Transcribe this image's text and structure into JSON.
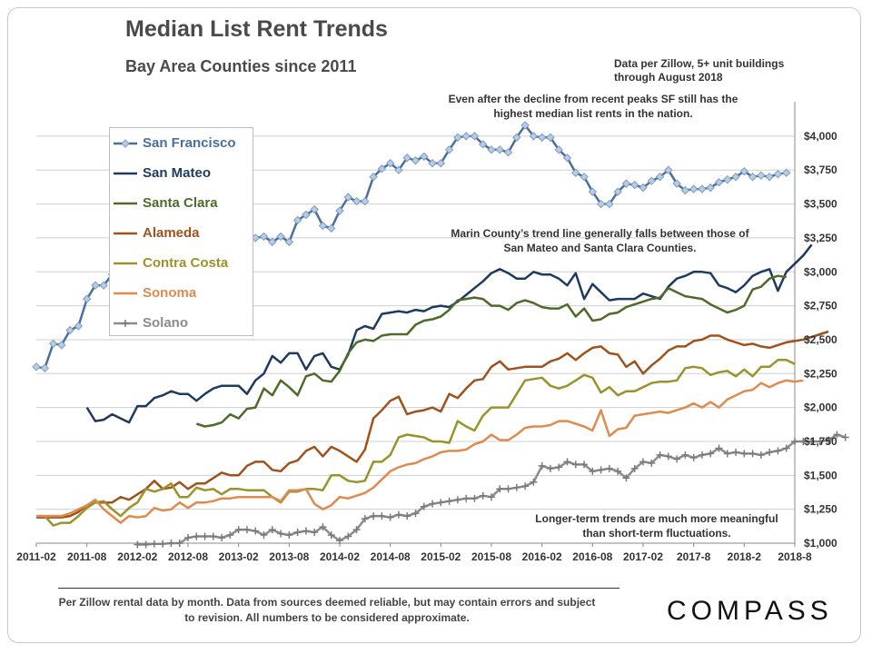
{
  "title": "Median List Rent Trends",
  "subtitle": "Bay Area Counties since 2011",
  "source_note": "Data per Zillow, 5+ unit buildings through August 2018",
  "annotations": {
    "sf": "Even after the decline from recent peaks SF still has the highest median list rents in the nation.",
    "marin": "Marin County’s  trend line generally falls between those of San Mateo and Santa Clara Counties.",
    "long_term": "Longer-term trends are much more meaningful than short-term  fluctuations."
  },
  "footnote": "Per Zillow rental data by month. Data from sources  deemed reliable, but may contain errors and subject to revision. All numbers to be considered approximate.",
  "brand": "COMPASS",
  "chart_data": {
    "type": "line",
    "x_start": "2011-02",
    "x_end": "2018-08",
    "x_tick_labels": [
      "2011-02",
      "2011-08",
      "2012-02",
      "2012-08",
      "2013-02",
      "2013-08",
      "2014-02",
      "2014-08",
      "2015-02",
      "2015-08",
      "2016-02",
      "2016-08",
      "2017-02",
      "2017-8",
      "2018-2",
      "2018-8"
    ],
    "y_tick_labels": [
      "$1,000",
      "$1,250",
      "$1,500",
      "$1,750",
      "$2,000",
      "$2,250",
      "$2,500",
      "$2,750",
      "$3,000",
      "$3,250",
      "$3,500",
      "$3,750",
      "$4,000"
    ],
    "ylim": [
      1000,
      4200
    ],
    "y_ticks": [
      1000,
      1250,
      1500,
      1750,
      2000,
      2250,
      2500,
      2750,
      3000,
      3250,
      3500,
      3750,
      4000
    ],
    "grid": "horizontal",
    "legend_position": "top-left",
    "series": [
      {
        "name": "San Francisco",
        "color": "#4a6f9c",
        "marker": "diamond",
        "start": "2011-02",
        "values": [
          2300,
          2290,
          2470,
          2460,
          2570,
          2600,
          2800,
          2900,
          2900,
          2980,
          3000,
          3050,
          3050,
          3100,
          3100,
          3150,
          3160,
          3150,
          3150,
          3130,
          3150,
          3120,
          3100,
          3080,
          3000,
          3290,
          3250,
          3260,
          3220,
          3260,
          3220,
          3380,
          3420,
          3460,
          3340,
          3320,
          3450,
          3550,
          3520,
          3520,
          3700,
          3760,
          3800,
          3750,
          3840,
          3820,
          3850,
          3800,
          3800,
          3900,
          3990,
          4000,
          4000,
          3940,
          3900,
          3900,
          3880,
          3990,
          4080,
          4000,
          3990,
          3990,
          3900,
          3840,
          3730,
          3700,
          3590,
          3500,
          3500,
          3590,
          3650,
          3640,
          3620,
          3670,
          3700,
          3750,
          3650,
          3600,
          3610,
          3610,
          3620,
          3660,
          3680,
          3700,
          3740,
          3700,
          3710,
          3700,
          3720,
          3730
        ]
      },
      {
        "name": "San Mateo",
        "color": "#1f3a5f",
        "marker": "none",
        "start": "2011-08",
        "values": [
          2000,
          1900,
          1910,
          1950,
          1920,
          1890,
          2010,
          2010,
          2070,
          2090,
          2120,
          2100,
          2100,
          2050,
          2100,
          2140,
          2160,
          2160,
          2160,
          2100,
          2200,
          2250,
          2380,
          2330,
          2400,
          2400,
          2280,
          2380,
          2400,
          2300,
          2280,
          2390,
          2570,
          2600,
          2580,
          2690,
          2700,
          2710,
          2700,
          2720,
          2710,
          2740,
          2750,
          2740,
          2780,
          2830,
          2880,
          2930,
          2990,
          3020,
          2990,
          2950,
          2950,
          3000,
          2980,
          2980,
          2950,
          2900,
          2990,
          2800,
          2910,
          2850,
          2790,
          2800,
          2800,
          2800,
          2840,
          2820,
          2800,
          2890,
          2950,
          2970,
          3000,
          3000,
          2990,
          2900,
          2880,
          2850,
          2900,
          2970,
          3000,
          3020,
          2860,
          3000,
          3060,
          3120,
          3200
        ]
      },
      {
        "name": "Santa Clara",
        "color": "#4e6b2a",
        "marker": "none",
        "start": "2012-09",
        "values": [
          1880,
          1860,
          1870,
          1890,
          1950,
          1920,
          1990,
          2000,
          2140,
          2090,
          2200,
          2150,
          2090,
          2230,
          2250,
          2200,
          2190,
          2270,
          2400,
          2480,
          2500,
          2490,
          2530,
          2540,
          2540,
          2540,
          2610,
          2640,
          2650,
          2670,
          2720,
          2790,
          2800,
          2810,
          2800,
          2750,
          2750,
          2720,
          2770,
          2790,
          2770,
          2740,
          2730,
          2730,
          2760,
          2670,
          2730,
          2640,
          2650,
          2690,
          2700,
          2740,
          2760,
          2780,
          2800,
          2810,
          2880,
          2850,
          2820,
          2810,
          2800,
          2760,
          2730,
          2700,
          2720,
          2750,
          2870,
          2890,
          2950,
          2970,
          2960
        ]
      },
      {
        "name": "Alameda",
        "color": "#a0521d",
        "marker": "none",
        "start": "2011-02",
        "values": [
          1190,
          1190,
          1190,
          1190,
          1200,
          1230,
          1280,
          1300,
          1300,
          1300,
          1340,
          1320,
          1360,
          1400,
          1460,
          1400,
          1410,
          1450,
          1400,
          1440,
          1440,
          1480,
          1520,
          1500,
          1500,
          1570,
          1600,
          1600,
          1540,
          1530,
          1590,
          1610,
          1680,
          1710,
          1640,
          1710,
          1680,
          1640,
          1600,
          1690,
          1920,
          1980,
          2050,
          2080,
          1950,
          1970,
          1980,
          2000,
          1970,
          2100,
          2070,
          2140,
          2200,
          2210,
          2300,
          2340,
          2280,
          2290,
          2300,
          2300,
          2300,
          2340,
          2360,
          2400,
          2350,
          2400,
          2440,
          2450,
          2400,
          2390,
          2300,
          2340,
          2250,
          2310,
          2360,
          2420,
          2450,
          2450,
          2490,
          2500,
          2530,
          2530,
          2500,
          2480,
          2460,
          2470,
          2450,
          2440,
          2460,
          2480,
          2490,
          2500,
          2520,
          2540,
          2560
        ]
      },
      {
        "name": "Contra Costa",
        "color": "#9a9329",
        "marker": "none",
        "start": "2011-02",
        "values": [
          1200,
          1200,
          1130,
          1150,
          1150,
          1200,
          1260,
          1300,
          1310,
          1250,
          1200,
          1260,
          1300,
          1400,
          1380,
          1400,
          1440,
          1340,
          1340,
          1410,
          1390,
          1400,
          1360,
          1400,
          1400,
          1390,
          1390,
          1390,
          1340,
          1300,
          1380,
          1380,
          1400,
          1400,
          1390,
          1500,
          1500,
          1460,
          1450,
          1460,
          1600,
          1600,
          1650,
          1780,
          1800,
          1790,
          1780,
          1750,
          1750,
          1740,
          1900,
          1860,
          1830,
          1940,
          2000,
          2000,
          2000,
          2100,
          2200,
          2210,
          2220,
          2160,
          2140,
          2160,
          2200,
          2240,
          2220,
          2110,
          2150,
          2090,
          2120,
          2120,
          2150,
          2180,
          2190,
          2190,
          2200,
          2290,
          2300,
          2290,
          2240,
          2260,
          2270,
          2230,
          2280,
          2230,
          2300,
          2300,
          2350,
          2350,
          2320
        ]
      },
      {
        "name": "Sonoma",
        "color": "#e08a4e",
        "marker": "none",
        "start": "2011-02",
        "values": [
          1200,
          1200,
          1200,
          1200,
          1220,
          1250,
          1280,
          1320,
          1250,
          1200,
          1150,
          1200,
          1190,
          1200,
          1260,
          1240,
          1250,
          1300,
          1260,
          1300,
          1300,
          1310,
          1330,
          1330,
          1340,
          1340,
          1340,
          1340,
          1340,
          1310,
          1390,
          1390,
          1400,
          1290,
          1250,
          1280,
          1340,
          1330,
          1350,
          1370,
          1410,
          1470,
          1530,
          1560,
          1580,
          1590,
          1620,
          1640,
          1670,
          1680,
          1680,
          1690,
          1730,
          1750,
          1800,
          1760,
          1760,
          1800,
          1850,
          1860,
          1860,
          1870,
          1900,
          1900,
          1880,
          1860,
          1830,
          1980,
          1790,
          1840,
          1850,
          1940,
          1950,
          1960,
          1970,
          1960,
          1980,
          2000,
          2030,
          2000,
          2040,
          2000,
          2060,
          2090,
          2120,
          2130,
          2180,
          2150,
          2180,
          2200,
          2190,
          2200
        ]
      },
      {
        "name": "Solano",
        "color": "#8c8c8c",
        "marker": "plus",
        "start": "2012-02",
        "values": [
          990,
          990,
          995,
          995,
          1000,
          1000,
          1040,
          1050,
          1050,
          1050,
          1040,
          1060,
          1100,
          1100,
          1090,
          1060,
          1100,
          1070,
          1060,
          1080,
          1090,
          1080,
          1120,
          1060,
          1020,
          1050,
          1100,
          1180,
          1200,
          1200,
          1190,
          1210,
          1200,
          1220,
          1270,
          1290,
          1300,
          1310,
          1320,
          1330,
          1330,
          1350,
          1340,
          1400,
          1400,
          1410,
          1420,
          1450,
          1570,
          1550,
          1560,
          1600,
          1580,
          1580,
          1530,
          1540,
          1550,
          1530,
          1480,
          1550,
          1600,
          1590,
          1650,
          1640,
          1620,
          1650,
          1630,
          1650,
          1660,
          1700,
          1660,
          1670,
          1660,
          1660,
          1650,
          1670,
          1680,
          1700,
          1750,
          1750,
          1750,
          1750,
          1760,
          1800,
          1780
        ]
      }
    ]
  }
}
